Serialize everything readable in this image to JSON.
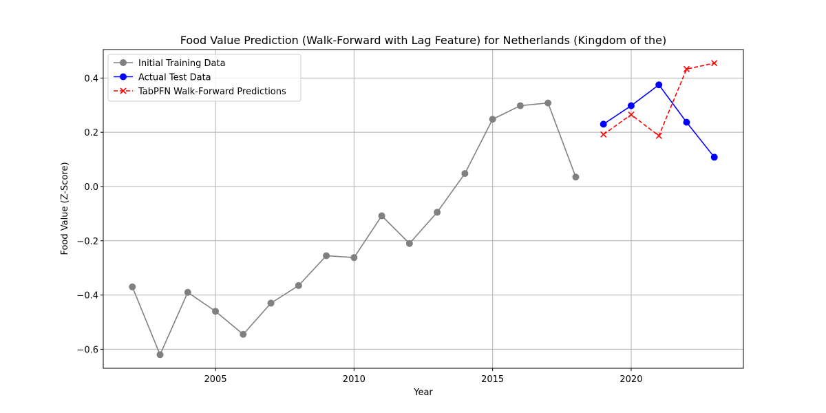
{
  "chart_data": {
    "type": "line",
    "title": "Food Value Prediction (Walk-Forward with Lag Feature) for Netherlands (Kingdom of the)",
    "xlabel": "Year",
    "ylabel": "Food Value (Z-Score)",
    "xlim": [
      2000.95,
      2024.05
    ],
    "ylim": [
      -0.67,
      0.505
    ],
    "xticks": [
      2005,
      2010,
      2015,
      2020
    ],
    "yticks": [
      -0.6,
      -0.4,
      -0.2,
      0.0,
      0.2,
      0.4
    ],
    "xtick_labels": [
      "2005",
      "2010",
      "2015",
      "2020"
    ],
    "ytick_labels": [
      "−0.6",
      "−0.4",
      "−0.2",
      "0.0",
      "0.2",
      "0.4"
    ],
    "grid": true,
    "legend_position": "upper-left",
    "series": [
      {
        "name": "Initial Training Data",
        "color": "#808080",
        "linestyle": "solid",
        "marker": "circle",
        "x": [
          2002,
          2003,
          2004,
          2005,
          2006,
          2007,
          2008,
          2009,
          2010,
          2011,
          2012,
          2013,
          2014,
          2015,
          2016,
          2017,
          2018
        ],
        "y": [
          -0.37,
          -0.62,
          -0.39,
          -0.46,
          -0.545,
          -0.43,
          -0.365,
          -0.255,
          -0.262,
          -0.108,
          -0.21,
          -0.095,
          0.048,
          0.248,
          0.298,
          0.308,
          0.035
        ]
      },
      {
        "name": "Actual Test Data",
        "color": "#0000ff",
        "linestyle": "solid",
        "marker": "circle",
        "x": [
          2019,
          2020,
          2021,
          2022,
          2023
        ],
        "y": [
          0.23,
          0.298,
          0.375,
          0.237,
          0.108
        ]
      },
      {
        "name": "TabPFN Walk-Forward Predictions",
        "color": "#ff0000",
        "linestyle": "dashed",
        "marker": "x",
        "x": [
          2019,
          2020,
          2021,
          2022,
          2023
        ],
        "y": [
          0.192,
          0.265,
          0.187,
          0.433,
          0.455
        ]
      }
    ]
  }
}
